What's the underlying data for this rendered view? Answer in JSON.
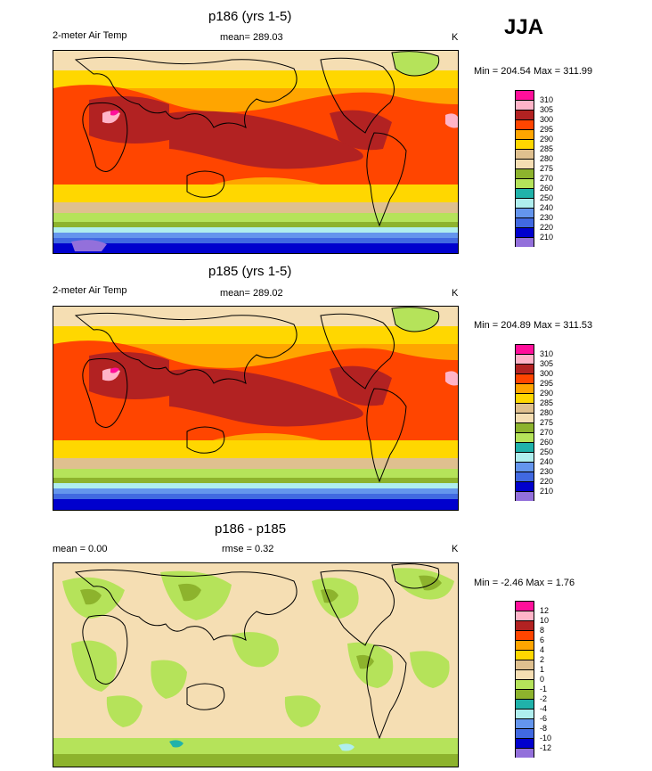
{
  "season": "JJA",
  "unit": "K",
  "panels": [
    {
      "title": "p186 (yrs 1-5)",
      "variable": "2-meter Air Temp",
      "mean_text": "mean= 289.03",
      "minmax_text": "Min = 204.54 Max = 311.99",
      "style": "temp",
      "levels": [
        "310",
        "305",
        "300",
        "295",
        "290",
        "285",
        "280",
        "275",
        "270",
        "260",
        "250",
        "240",
        "230",
        "220",
        "210"
      ]
    },
    {
      "title": "p185 (yrs 1-5)",
      "variable": "2-meter Air Temp",
      "mean_text": "mean= 289.02",
      "minmax_text": "Min = 204.89 Max = 311.53",
      "style": "temp",
      "levels": [
        "310",
        "305",
        "300",
        "295",
        "290",
        "285",
        "280",
        "275",
        "270",
        "260",
        "250",
        "240",
        "230",
        "220",
        "210"
      ]
    },
    {
      "title": "p186 - p185",
      "variable": "mean =   0.00",
      "mean_text": "rmse =   0.32",
      "minmax_text": "Min =  -2.46 Max =   1.76",
      "style": "diff",
      "levels": [
        "12",
        "10",
        "8",
        "6",
        "4",
        "2",
        "1",
        "0",
        "-1",
        "-2",
        "-4",
        "-6",
        "-8",
        "-10",
        "-12"
      ]
    }
  ],
  "colors": {
    "temp_scale": [
      "#ff0f9a",
      "#ffb4c8",
      "#b22222",
      "#ff4500",
      "#ffa500",
      "#ffd700",
      "#dfc08f",
      "#f5deb3",
      "#8db32d",
      "#b5e35a",
      "#20b2aa",
      "#afeeee",
      "#6495ed",
      "#4169e1",
      "#0000cd",
      "#9370db"
    ],
    "diff_scale": [
      "#ff0f9a",
      "#ffb4c8",
      "#b22222",
      "#ff4500",
      "#ffa500",
      "#ffd700",
      "#dfc08f",
      "#f5deb3",
      "#b5e35a",
      "#8db32d",
      "#20b2aa",
      "#afeeee",
      "#6495ed",
      "#4169e1",
      "#0000cd",
      "#9370db"
    ]
  }
}
